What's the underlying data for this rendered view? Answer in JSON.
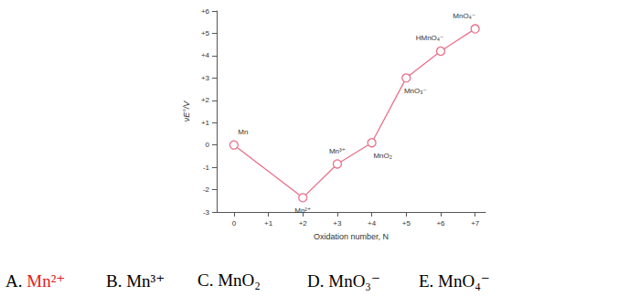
{
  "chart_data": {
    "type": "line",
    "xlabel": "Oxidation number, N",
    "ylabel": "νE°/V",
    "x": [
      0,
      2,
      3,
      4,
      5,
      6,
      7
    ],
    "values": [
      0,
      -2.36,
      -0.85,
      0.1,
      3.0,
      4.2,
      5.2
    ],
    "labels": [
      "Mn",
      "Mn²⁺",
      "Mn³⁺",
      "MnO₂",
      "MnO₃⁻",
      "HMnO₄⁻",
      "MnO₄⁻"
    ],
    "color": "#e8708a",
    "marker": "circle",
    "xlim": [
      -0.5,
      7.3
    ],
    "xticks": [
      0,
      {
        "value": 1,
        "label": "+1"
      },
      {
        "value": 2,
        "label": "+2"
      },
      {
        "value": 3,
        "label": "+3"
      },
      {
        "value": 4,
        "label": "+4"
      },
      {
        "value": 5,
        "label": "+5"
      },
      {
        "value": 6,
        "label": "+6"
      },
      {
        "value": 7,
        "label": "+7"
      }
    ],
    "ylim": [
      -3,
      6
    ],
    "yticks": [
      -3,
      -2,
      -1,
      0,
      {
        "value": 1,
        "label": "+1"
      },
      {
        "value": 2,
        "label": "+2"
      },
      {
        "value": 3,
        "label": "+3"
      },
      {
        "value": 4,
        "label": "+4"
      },
      {
        "value": 5,
        "label": "+5"
      },
      {
        "value": 6,
        "label": "+6"
      }
    ],
    "grid": false
  },
  "answer_choices": [
    {
      "letter": "A.",
      "text": "Mn²⁺",
      "color": "#e02020"
    },
    {
      "letter": "B.",
      "text": "Mn³⁺",
      "color": "#000000"
    },
    {
      "letter": "C.",
      "text": "MnO₂",
      "color": "#000000"
    },
    {
      "letter": "D.",
      "text": "MnO₃⁻",
      "color": "#000000"
    },
    {
      "letter": "E.",
      "text": "MnO₄⁻",
      "color": "#000000"
    }
  ]
}
